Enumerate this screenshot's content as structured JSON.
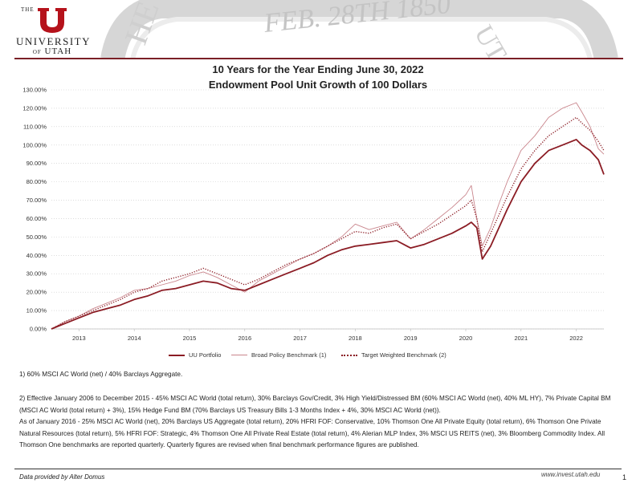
{
  "header": {
    "logo_the": "THE",
    "logo_university": "UNIVERSITY",
    "logo_of": "OF",
    "logo_utah": "UTAH",
    "seal_text": "FEB. 28TH 1850",
    "brand_color": "#8b1c24"
  },
  "title_line1": "10 Years for the Year Ending June 30, 2022",
  "title_line2": "Endowment Pool Unit Growth of 100 Dollars",
  "legend": {
    "uu": "UU Portfolio",
    "broad": "Broad Policy Benchmark (1)",
    "target": "Target Weighted Benchmark (2)"
  },
  "notes": {
    "n1": "1) 60% MSCI AC World (net) / 40% Barclays Aggregate.",
    "n2": "2) Effective January 2006 to December 2015 - 45% MSCI AC World (total return), 30% Barclays Gov/Credit, 3% High Yield/Distressed BM (60% MSCI AC World (net), 40% ML HY), 7% Private Capital BM (MSCI AC World (total return) + 3%), 15% Hedge Fund BM (70% Barclays US Treasury Bills 1-3 Months Index + 4%, 30% MSCI AC World (net)).",
    "n3": "As of January 2016 - 25% MSCI AC World (net), 20% Barclays US Aggregate (total return), 20% HFRI FOF: Conservative, 10% Thomson One All Private Equity (total return), 6% Thomson One Private Natural Resources (total return), 5% HFRI FOF: Strategic, 4% Thomson One All Private Real Estate (total return), 4% Alerian MLP Index, 3% MSCI US REITS (net), 3% Bloomberg Commodity Index. All Thomson One benchmarks are reported quarterly. Quarterly figures are revised when final benchmark performance figures are published."
  },
  "footer": {
    "left": "Data provided by Alter Domus",
    "right": "www.invest.utah.edu",
    "page": "1"
  },
  "chart_data": {
    "type": "line",
    "x_unit": "year",
    "y_unit": "percent",
    "xlim": [
      2012.5,
      2022.5
    ],
    "ylim": [
      0,
      130
    ],
    "ytick_labels": [
      "0.00%",
      "10.00%",
      "20.00%",
      "30.00%",
      "40.00%",
      "50.00%",
      "60.00%",
      "70.00%",
      "80.00%",
      "90.00%",
      "100.00%",
      "110.00%",
      "120.00%",
      "130.00%"
    ],
    "xtick_labels": [
      "2013",
      "2014",
      "2015",
      "2016",
      "2017",
      "2018",
      "2019",
      "2020",
      "2021",
      "2022"
    ],
    "grid": "horizontal-dotted",
    "legend_position": "bottom",
    "series": [
      {
        "name": "UU Portfolio",
        "color": "#8b1c24",
        "style": "solid-thick",
        "x": [
          2012.5,
          2012.75,
          2013.0,
          2013.25,
          2013.5,
          2013.75,
          2014.0,
          2014.25,
          2014.5,
          2014.75,
          2015.0,
          2015.25,
          2015.5,
          2015.75,
          2016.0,
          2016.25,
          2016.5,
          2016.75,
          2017.0,
          2017.25,
          2017.5,
          2017.75,
          2018.0,
          2018.25,
          2018.5,
          2018.75,
          2019.0,
          2019.25,
          2019.5,
          2019.75,
          2020.0,
          2020.1,
          2020.2,
          2020.3,
          2020.45,
          2020.6,
          2020.75,
          2021.0,
          2021.25,
          2021.5,
          2021.75,
          2022.0,
          2022.1,
          2022.25,
          2022.4,
          2022.5
        ],
        "y": [
          0,
          3,
          6,
          9,
          11,
          13,
          16,
          18,
          21,
          22,
          24,
          26,
          25,
          22,
          21,
          24,
          27,
          30,
          33,
          36,
          40,
          43,
          45,
          46,
          47,
          48,
          44,
          46,
          49,
          52,
          56,
          58,
          55,
          38,
          45,
          55,
          65,
          80,
          90,
          97,
          100,
          103,
          100,
          97,
          92,
          84
        ]
      },
      {
        "name": "Broad Policy Benchmark (1)",
        "color": "#c9858c",
        "style": "solid-thin",
        "x": [
          2012.5,
          2012.75,
          2013.0,
          2013.25,
          2013.5,
          2013.75,
          2014.0,
          2014.25,
          2014.5,
          2014.75,
          2015.0,
          2015.25,
          2015.5,
          2015.75,
          2016.0,
          2016.25,
          2016.5,
          2016.75,
          2017.0,
          2017.25,
          2017.5,
          2017.75,
          2018.0,
          2018.25,
          2018.5,
          2018.75,
          2019.0,
          2019.25,
          2019.5,
          2019.75,
          2020.0,
          2020.1,
          2020.2,
          2020.3,
          2020.45,
          2020.6,
          2020.75,
          2021.0,
          2021.25,
          2021.5,
          2021.75,
          2022.0,
          2022.1,
          2022.25,
          2022.4,
          2022.5
        ],
        "y": [
          0,
          4,
          7,
          11,
          14,
          17,
          21,
          22,
          24,
          26,
          29,
          31,
          28,
          24,
          20,
          26,
          30,
          34,
          38,
          41,
          45,
          50,
          57,
          54,
          56,
          58,
          49,
          54,
          60,
          66,
          73,
          78,
          60,
          45,
          55,
          68,
          80,
          97,
          105,
          115,
          120,
          123,
          118,
          110,
          98,
          95
        ]
      },
      {
        "name": "Target Weighted Benchmark (2)",
        "color": "#8b1c24",
        "style": "dotted",
        "x": [
          2012.5,
          2012.75,
          2013.0,
          2013.25,
          2013.5,
          2013.75,
          2014.0,
          2014.25,
          2014.5,
          2014.75,
          2015.0,
          2015.25,
          2015.5,
          2015.75,
          2016.0,
          2016.25,
          2016.5,
          2016.75,
          2017.0,
          2017.25,
          2017.5,
          2017.75,
          2018.0,
          2018.25,
          2018.5,
          2018.75,
          2019.0,
          2019.25,
          2019.5,
          2019.75,
          2020.0,
          2020.1,
          2020.2,
          2020.3,
          2020.45,
          2020.6,
          2020.75,
          2021.0,
          2021.25,
          2021.5,
          2021.75,
          2022.0,
          2022.1,
          2022.25,
          2022.4,
          2022.5
        ],
        "y": [
          0,
          4,
          7,
          10,
          13,
          16,
          20,
          22,
          26,
          28,
          30,
          33,
          30,
          27,
          24,
          27,
          31,
          35,
          38,
          41,
          45,
          49,
          53,
          52,
          55,
          57,
          49,
          53,
          57,
          62,
          67,
          70,
          60,
          42,
          52,
          62,
          72,
          87,
          97,
          105,
          110,
          115,
          112,
          108,
          102,
          97
        ]
      }
    ]
  }
}
